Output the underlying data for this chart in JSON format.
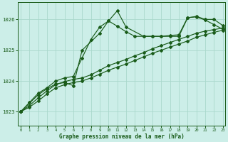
{
  "title": "Graphe pression niveau de la mer (hPa)",
  "background_color": "#cceee8",
  "line_color": "#1a5c1a",
  "grid_color": "#aad8cc",
  "ylim": [
    1022.55,
    1026.55
  ],
  "xlim": [
    -0.3,
    23.3
  ],
  "yticks": [
    1023,
    1024,
    1025,
    1026
  ],
  "xticks": [
    0,
    1,
    2,
    3,
    4,
    5,
    6,
    7,
    8,
    9,
    10,
    11,
    12,
    13,
    14,
    15,
    16,
    17,
    18,
    19,
    20,
    21,
    22,
    23
  ],
  "series": [
    {
      "x": [
        0,
        2,
        3,
        4,
        5,
        6,
        7,
        9,
        10,
        11,
        12,
        14,
        15,
        16,
        17,
        18,
        19,
        20,
        21,
        22,
        23
      ],
      "y": [
        1023.0,
        1023.55,
        1023.75,
        1023.9,
        1023.95,
        1023.85,
        1025.0,
        1025.55,
        1025.95,
        1026.28,
        1025.75,
        1025.45,
        1025.45,
        1025.45,
        1025.45,
        1025.45,
        1026.05,
        1026.1,
        1026.0,
        1026.0,
        1025.8
      ]
    },
    {
      "x": [
        0,
        1,
        2,
        3,
        4,
        5,
        6,
        7,
        8,
        9,
        10,
        11,
        12,
        13,
        14,
        15,
        16,
        17,
        18,
        19,
        20,
        21,
        22,
        23
      ],
      "y": [
        1023.0,
        1023.3,
        1023.6,
        1023.78,
        1024.0,
        1024.1,
        1024.15,
        1024.75,
        1025.35,
        1025.75,
        1025.95,
        1025.78,
        1025.6,
        1025.45,
        1025.45,
        1025.45,
        1025.45,
        1025.48,
        1025.5,
        1026.06,
        1026.08,
        1025.98,
        1025.83,
        1025.68
      ]
    },
    {
      "x": [
        0,
        1,
        2,
        3,
        4,
        5,
        6,
        7,
        8,
        9,
        10,
        11,
        12,
        13,
        14,
        15,
        16,
        17,
        18,
        19,
        20,
        21,
        22,
        23
      ],
      "y": [
        1023.0,
        1023.2,
        1023.45,
        1023.68,
        1023.88,
        1023.98,
        1024.05,
        1024.1,
        1024.2,
        1024.35,
        1024.5,
        1024.6,
        1024.7,
        1024.82,
        1024.92,
        1025.05,
        1025.15,
        1025.25,
        1025.35,
        1025.45,
        1025.55,
        1025.62,
        1025.67,
        1025.72
      ]
    },
    {
      "x": [
        0,
        1,
        2,
        3,
        4,
        5,
        6,
        7,
        8,
        9,
        10,
        11,
        12,
        13,
        14,
        15,
        16,
        17,
        18,
        19,
        20,
        21,
        22,
        23
      ],
      "y": [
        1023.0,
        1023.15,
        1023.35,
        1023.58,
        1023.78,
        1023.88,
        1023.95,
        1024.0,
        1024.1,
        1024.22,
        1024.35,
        1024.45,
        1024.55,
        1024.67,
        1024.78,
        1024.9,
        1025.0,
        1025.1,
        1025.2,
        1025.3,
        1025.42,
        1025.5,
        1025.58,
        1025.65
      ]
    }
  ]
}
